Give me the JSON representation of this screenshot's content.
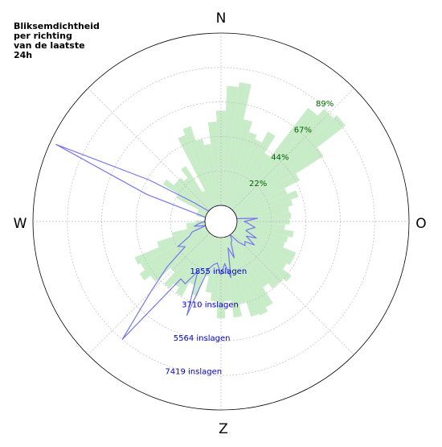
{
  "chart_data": {
    "type": "polar",
    "title_lines": [
      "Bliksemdichtheid",
      "per richting",
      "van de laatste",
      "24h"
    ],
    "compass_labels": [
      "N",
      "O",
      "Z",
      "W"
    ],
    "percentage_axis": {
      "ticks": [
        22,
        44,
        67,
        89
      ],
      "tick_labels": [
        "22%",
        "44%",
        "67%",
        "89%"
      ],
      "max": 111,
      "color": "#006400"
    },
    "count_axis": {
      "ticks": [
        1855,
        3710,
        5564,
        7419
      ],
      "tick_labels": [
        "1855 inslagen",
        "3710 inslagen",
        "5564 inslagen",
        "7419 inslagen"
      ],
      "max": 9274,
      "color": "#0000cc"
    },
    "percentage_series": {
      "color": "#c8ecc8",
      "bearings": [
        0,
        5,
        10,
        15,
        20,
        25,
        30,
        35,
        40,
        45,
        50,
        55,
        60,
        65,
        70,
        75,
        80,
        85,
        90,
        95,
        100,
        105,
        110,
        115,
        120,
        125,
        130,
        135,
        140,
        145,
        150,
        155,
        160,
        165,
        170,
        175,
        180,
        185,
        190,
        195,
        200,
        205,
        210,
        215,
        220,
        225,
        230,
        235,
        240,
        245,
        250,
        255,
        260,
        265,
        270,
        275,
        280,
        285,
        290,
        295,
        300,
        305,
        310,
        315,
        320,
        325,
        330,
        335,
        340,
        345,
        350,
        355
      ],
      "values": [
        61,
        77,
        80,
        57,
        50,
        47,
        55,
        42,
        82,
        88,
        91,
        68,
        47,
        36,
        42,
        37,
        34,
        35,
        34,
        31,
        37,
        34,
        33,
        42,
        42,
        40,
        47,
        44,
        44,
        40,
        52,
        55,
        54,
        44,
        52,
        41,
        52,
        41,
        36,
        26,
        40,
        34,
        44,
        40,
        44,
        34,
        47,
        52,
        48,
        50,
        33,
        22,
        12,
        12,
        6,
        0,
        0,
        6,
        6,
        6,
        22,
        34,
        28,
        28,
        25,
        32,
        12,
        50,
        54,
        44,
        40,
        54
      ]
    },
    "count_series": {
      "color": "#7777ee",
      "bearings": [
        0,
        5,
        10,
        15,
        20,
        25,
        30,
        35,
        40,
        45,
        50,
        55,
        60,
        65,
        70,
        75,
        80,
        85,
        90,
        95,
        100,
        105,
        110,
        115,
        120,
        125,
        130,
        135,
        140,
        145,
        150,
        155,
        160,
        165,
        170,
        175,
        180,
        185,
        190,
        195,
        200,
        205,
        210,
        215,
        220,
        225,
        230,
        235,
        240,
        245,
        250,
        255,
        260,
        265,
        270,
        275,
        280,
        285,
        290,
        295,
        300,
        305,
        310,
        315,
        320,
        325,
        330,
        335,
        340,
        345,
        350,
        355
      ],
      "values": [
        0,
        0,
        0,
        0,
        0,
        0,
        0,
        0,
        0,
        0,
        0,
        0,
        0,
        0,
        0,
        0,
        0,
        1109,
        380,
        665,
        1001,
        701,
        561,
        1231,
        712,
        1331,
        811,
        971,
        580,
        0,
        300,
        401,
        1210,
        610,
        2200,
        1409,
        2000,
        1380,
        1501,
        1809,
        4500,
        2100,
        3000,
        2900,
        7412,
        4500,
        2910,
        1500,
        1809,
        1000,
        800,
        0,
        600,
        300,
        0,
        0,
        0,
        0,
        3400,
        8950,
        3600,
        880,
        0,
        0,
        0,
        0,
        0,
        0,
        0,
        0,
        0,
        0
      ]
    }
  }
}
